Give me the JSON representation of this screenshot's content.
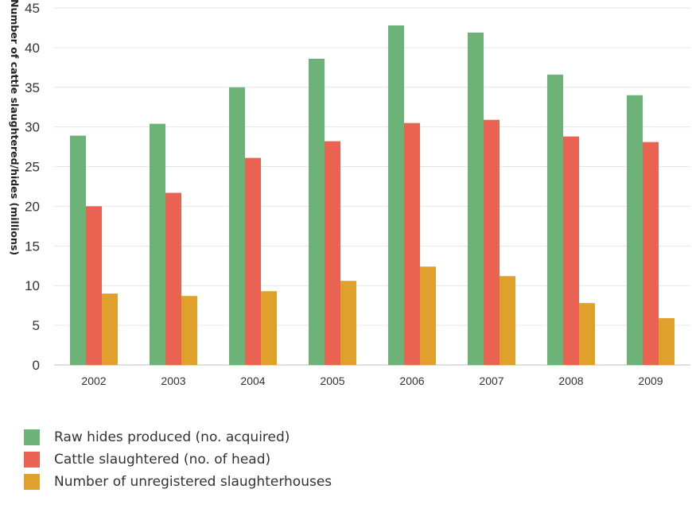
{
  "chart_data": {
    "type": "bar",
    "title": "",
    "xlabel": "",
    "ylabel": "Number of cattle slaughtered/hides (millions)",
    "ylim": [
      0,
      45
    ],
    "yticks": [
      0,
      5,
      10,
      15,
      20,
      25,
      30,
      35,
      40,
      45
    ],
    "grid": true,
    "legend_position": "bottom-left",
    "categories": [
      "2002",
      "2003",
      "2004",
      "2005",
      "2006",
      "2007",
      "2008",
      "2009"
    ],
    "series": [
      {
        "name": "Raw hides produced (no. acquired)",
        "color": "#6db276",
        "values": [
          28.9,
          30.4,
          35.0,
          38.6,
          42.8,
          41.9,
          36.6,
          34.0
        ]
      },
      {
        "name": "Cattle slaughtered (no. of head)",
        "color": "#ea6352",
        "values": [
          20.0,
          21.7,
          26.1,
          28.2,
          30.5,
          30.9,
          28.8,
          28.1
        ]
      },
      {
        "name": "Number of unregistered slaughterhouses",
        "color": "#dfa02c",
        "values": [
          9.0,
          8.7,
          9.3,
          10.6,
          12.4,
          11.2,
          7.8,
          5.9
        ]
      }
    ]
  }
}
